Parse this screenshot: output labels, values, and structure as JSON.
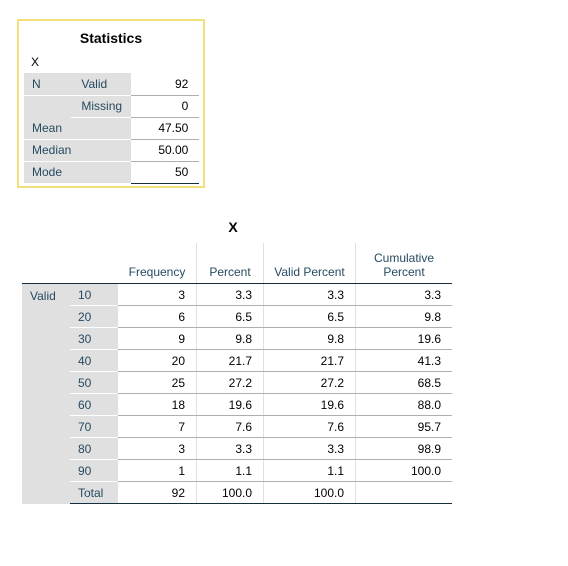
{
  "statistics": {
    "title": "Statistics",
    "variable": "X",
    "rows": [
      {
        "label1": "N",
        "label2": "Valid",
        "value": "92"
      },
      {
        "label1": "",
        "label2": "Missing",
        "value": "0"
      },
      {
        "label1": "Mean",
        "label2": "",
        "value": "47.50"
      },
      {
        "label1": "Median",
        "label2": "",
        "value": "50.00"
      },
      {
        "label1": "Mode",
        "label2": "",
        "value": "50"
      }
    ]
  },
  "frequency": {
    "title": "X",
    "headers": {
      "frequency": "Frequency",
      "percent": "Percent",
      "valid_percent": "Valid Percent",
      "cumulative_line1": "Cumulative",
      "cumulative_line2": "Percent"
    },
    "group_label": "Valid",
    "rows": [
      {
        "value": "10",
        "frequency": "3",
        "percent": "3.3",
        "valid_percent": "3.3",
        "cumulative": "3.3"
      },
      {
        "value": "20",
        "frequency": "6",
        "percent": "6.5",
        "valid_percent": "6.5",
        "cumulative": "9.8"
      },
      {
        "value": "30",
        "frequency": "9",
        "percent": "9.8",
        "valid_percent": "9.8",
        "cumulative": "19.6"
      },
      {
        "value": "40",
        "frequency": "20",
        "percent": "21.7",
        "valid_percent": "21.7",
        "cumulative": "41.3"
      },
      {
        "value": "50",
        "frequency": "25",
        "percent": "27.2",
        "valid_percent": "27.2",
        "cumulative": "68.5"
      },
      {
        "value": "60",
        "frequency": "18",
        "percent": "19.6",
        "valid_percent": "19.6",
        "cumulative": "88.0"
      },
      {
        "value": "70",
        "frequency": "7",
        "percent": "7.6",
        "valid_percent": "7.6",
        "cumulative": "95.7"
      },
      {
        "value": "80",
        "frequency": "3",
        "percent": "3.3",
        "valid_percent": "3.3",
        "cumulative": "98.9"
      },
      {
        "value": "90",
        "frequency": "1",
        "percent": "1.1",
        "valid_percent": "1.1",
        "cumulative": "100.0"
      }
    ],
    "total": {
      "label": "Total",
      "frequency": "92",
      "percent": "100.0",
      "valid_percent": "100.0",
      "cumulative": ""
    }
  }
}
